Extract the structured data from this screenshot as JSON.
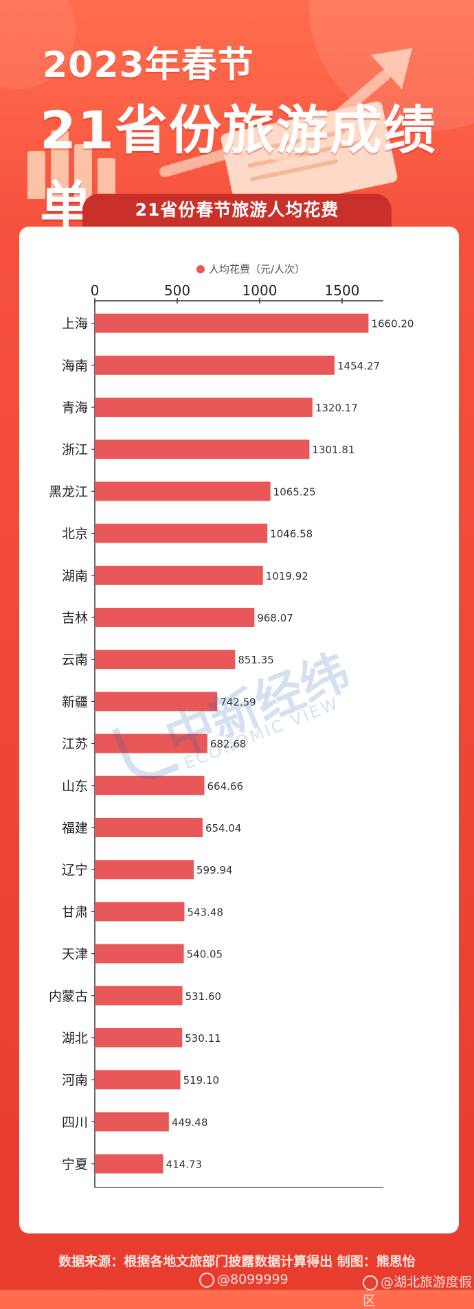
{
  "header": {
    "title_line1": "2023年春节",
    "title_line2": "21省份旅游成绩单",
    "chart_heading": "21省份春节旅游人均花费"
  },
  "chart_data": {
    "type": "bar",
    "orientation": "horizontal",
    "title": "21省份春节旅游人均花费",
    "legend": "人均花费（元/人次）",
    "legend_position": "top",
    "xlim": [
      0,
      1750
    ],
    "ticks": [
      "0",
      "500",
      "1000",
      "1500"
    ],
    "tick_values": [
      0,
      500,
      1000,
      1500
    ],
    "bar_color": "#e95858",
    "categories": [
      "上海",
      "海南",
      "青海",
      "浙江",
      "黑龙江",
      "北京",
      "湖南",
      "吉林",
      "云南",
      "新疆",
      "江苏",
      "山东",
      "福建",
      "辽宁",
      "甘肃",
      "天津",
      "内蒙古",
      "湖北",
      "河南",
      "四川",
      "宁夏"
    ],
    "values": [
      1660.2,
      1454.27,
      1320.17,
      1301.81,
      1065.25,
      1046.58,
      1019.92,
      968.07,
      851.35,
      742.59,
      682.68,
      664.66,
      654.04,
      599.94,
      543.48,
      540.05,
      531.6,
      530.11,
      519.1,
      449.48,
      414.73
    ],
    "value_labels": [
      "1660.20",
      "1454.27",
      "1320.17",
      "1301.81",
      "1065.25",
      "1046.58",
      "1019.92",
      "968.07",
      "851.35",
      "742.59",
      "682.68",
      "664.66",
      "654.04",
      "599.94",
      "543.48",
      "540.05",
      "531.60",
      "530.11",
      "519.10",
      "449.48",
      "414.73"
    ]
  },
  "watermark": {
    "main": "中新经纬",
    "sub": "ECONOMIC VIEW"
  },
  "footer": {
    "source": "数据来源：根据各地文旅部门披露数据计算得出  制图：熊思怡",
    "weibo_left": "@8099999",
    "weibo_right": "@湖北旅游度假区"
  },
  "colors": {
    "background": "#ef4a36",
    "bar": "#e95858",
    "pill": "#c9302a"
  }
}
